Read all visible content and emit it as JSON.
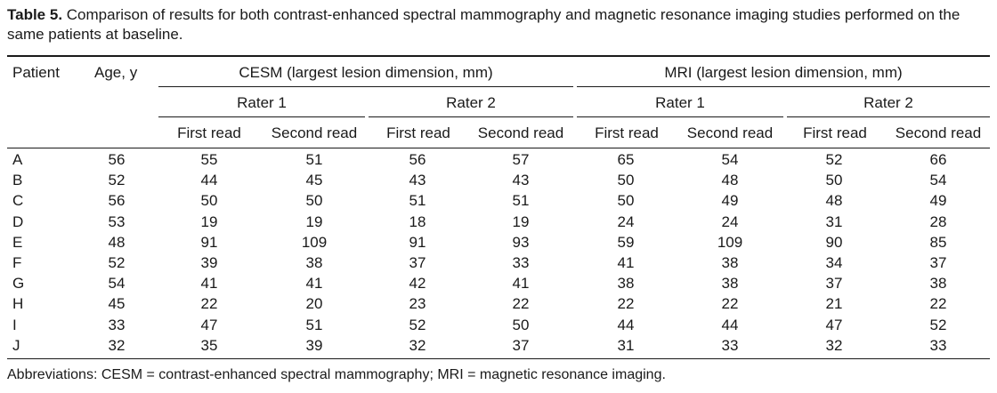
{
  "caption": {
    "label": "Table 5.",
    "text": " Comparison of results for both contrast-enhanced spectral mammography and magnetic resonance imaging studies performed on the same patients at baseline."
  },
  "header": {
    "patient": "Patient",
    "age": "Age, y",
    "cesm": "CESM (largest lesion dimension, mm)",
    "mri": "MRI (largest lesion dimension, mm)",
    "rater1": "Rater 1",
    "rater2": "Rater 2",
    "first_read": "First read",
    "second_read": "Second read"
  },
  "rows": [
    [
      "A",
      "56",
      "55",
      "51",
      "56",
      "57",
      "65",
      "54",
      "52",
      "66"
    ],
    [
      "B",
      "52",
      "44",
      "45",
      "43",
      "43",
      "50",
      "48",
      "50",
      "54"
    ],
    [
      "C",
      "56",
      "50",
      "50",
      "51",
      "51",
      "50",
      "49",
      "48",
      "49"
    ],
    [
      "D",
      "53",
      "19",
      "19",
      "18",
      "19",
      "24",
      "24",
      "31",
      "28"
    ],
    [
      "E",
      "48",
      "91",
      "109",
      "91",
      "93",
      "59",
      "109",
      "90",
      "85"
    ],
    [
      "F",
      "52",
      "39",
      "38",
      "37",
      "33",
      "41",
      "38",
      "34",
      "37"
    ],
    [
      "G",
      "54",
      "41",
      "41",
      "42",
      "41",
      "38",
      "38",
      "37",
      "38"
    ],
    [
      "H",
      "45",
      "22",
      "20",
      "23",
      "22",
      "22",
      "22",
      "21",
      "22"
    ],
    [
      "I",
      "33",
      "47",
      "51",
      "52",
      "50",
      "44",
      "44",
      "47",
      "52"
    ],
    [
      "J",
      "32",
      "35",
      "39",
      "32",
      "37",
      "31",
      "33",
      "32",
      "33"
    ]
  ],
  "footnote": "Abbreviations: CESM = contrast-enhanced spectral mammography; MRI = magnetic resonance imaging."
}
